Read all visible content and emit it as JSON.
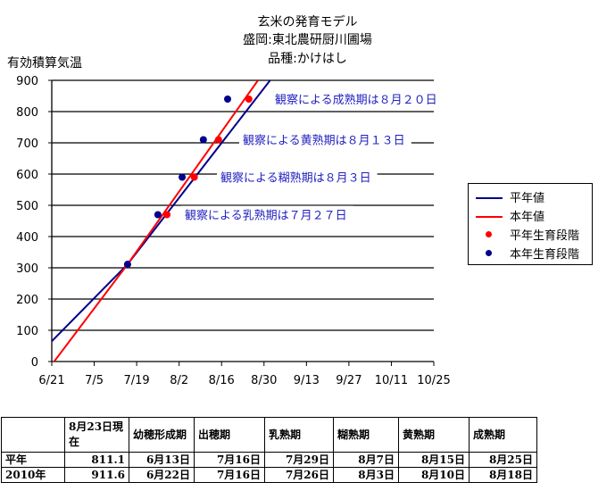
{
  "title": {
    "line1": "玄米の発育モデル",
    "line2": "盛岡:東北農研厨川圃場",
    "line3": "品種:かけはし"
  },
  "ylabel": "有効積算気温",
  "legend": [
    {
      "label": "平年値",
      "kind": "line",
      "color": "#00008b"
    },
    {
      "label": "本年値",
      "kind": "line",
      "color": "#ff0000"
    },
    {
      "label": "平年生育段階",
      "kind": "dot",
      "color": "#ff0000"
    },
    {
      "label": "本年生育段階",
      "kind": "dot",
      "color": "#00008b"
    }
  ],
  "chart_data": {
    "type": "line",
    "x_type": "date",
    "ylim": [
      0,
      900
    ],
    "y_ticks": [
      0,
      100,
      200,
      300,
      400,
      500,
      600,
      700,
      800,
      900
    ],
    "x_ticks": [
      "6/21",
      "7/5",
      "7/19",
      "8/2",
      "8/16",
      "8/30",
      "9/13",
      "9/27",
      "10/11",
      "10/25"
    ],
    "xlim": [
      "2010-06-21",
      "2010-10-25"
    ],
    "grid": "horizontal",
    "legend_position": "right",
    "series": [
      {
        "name": "平年値",
        "color": "#00008b",
        "points": [
          [
            "2010-06-21",
            65
          ],
          [
            "2010-07-16",
            311
          ],
          [
            "2010-09-01",
            900
          ]
        ]
      },
      {
        "name": "本年値",
        "color": "#ff0000",
        "points": [
          [
            "2010-06-21",
            -10
          ],
          [
            "2010-07-16",
            311
          ],
          [
            "2010-08-28",
            900
          ]
        ]
      },
      {
        "name": "平年生育段階",
        "color": "#ff0000",
        "marker": "dot",
        "points": [
          [
            "2010-07-16",
            311
          ],
          [
            "2010-07-29",
            470
          ],
          [
            "2010-08-07",
            590
          ],
          [
            "2010-08-15",
            710
          ],
          [
            "2010-08-25",
            840
          ]
        ]
      },
      {
        "name": "本年生育段階",
        "color": "#00008b",
        "marker": "dot",
        "points": [
          [
            "2010-07-16",
            311
          ],
          [
            "2010-07-26",
            470
          ],
          [
            "2010-08-03",
            590
          ],
          [
            "2010-08-10",
            710
          ],
          [
            "2010-08-18",
            840
          ]
        ]
      }
    ],
    "annotations": [
      {
        "text": "観察による成熟期は８月２０日",
        "y": 840
      },
      {
        "text": "観察による黄熟期は８月１３日",
        "y": 710
      },
      {
        "text": "観察による糊熟期は８月３日",
        "y": 590
      },
      {
        "text": "観察による乳熟期は７月２７日",
        "y": 470
      }
    ]
  },
  "table": {
    "headers": [
      "",
      "8月23日現在",
      "幼穂形成期",
      "出穂期",
      "乳熟期",
      "糊熟期",
      "黄熟期",
      "成熟期"
    ],
    "rows": [
      {
        "label": "平年",
        "values": [
          "811.1",
          "6月13日",
          "7月16日",
          "7月29日",
          "8月7日",
          "8月15日",
          "8月25日"
        ]
      },
      {
        "label": "2010年",
        "values": [
          "911.6",
          "6月22日",
          "7月16日",
          "7月26日",
          "8月3日",
          "8月10日",
          "8月18日"
        ]
      }
    ]
  }
}
